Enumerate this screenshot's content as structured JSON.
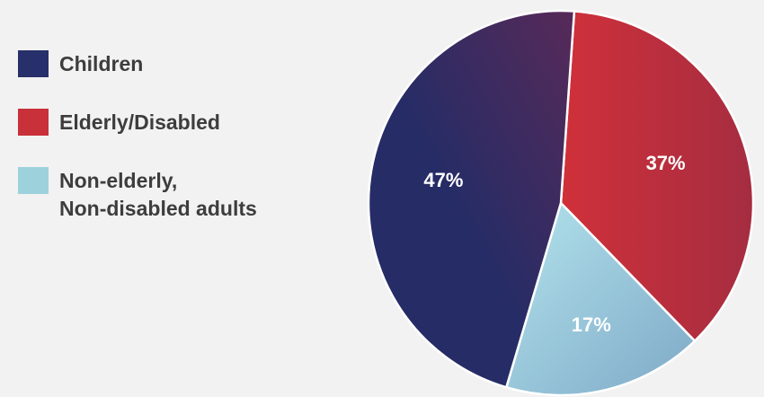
{
  "chart_data": {
    "type": "pie",
    "title": "",
    "categories": [
      "Children",
      "Elderly/Disabled",
      "Non-elderly,\nNon-disabled adults"
    ],
    "values": [
      47,
      37,
      17
    ],
    "labels": [
      "47%",
      "37%",
      "17%"
    ],
    "colors": [
      "#27306a",
      "#c8303a",
      "#9dd2dc"
    ],
    "legend_position": "left"
  }
}
